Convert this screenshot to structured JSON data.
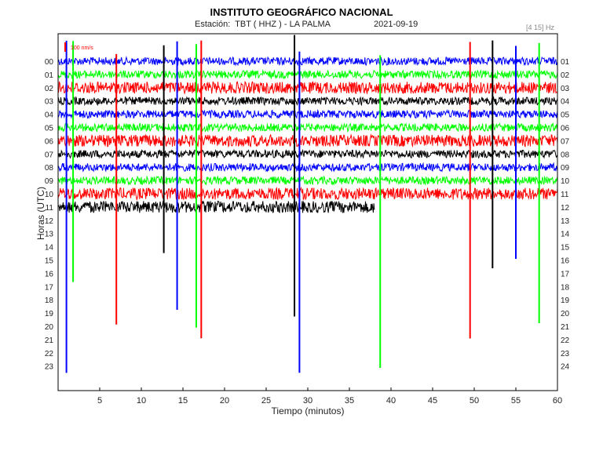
{
  "header": {
    "title": "INSTITUTO GEOGRÁFICO NACIONAL",
    "station": "Estación:  TBT ( HHZ ) - LA PALMA",
    "date": "2021-09-19",
    "band": "[4 15] Hz",
    "scale_label": "100 nm/s"
  },
  "chart_data": {
    "type": "line",
    "title": "INSTITUTO GEOGRÁFICO NACIONAL",
    "xlabel": "Tiempo (minutos)",
    "ylabel": "Horas (UTC)",
    "xlim": [
      0,
      60
    ],
    "x_ticks": [
      5,
      10,
      15,
      20,
      25,
      30,
      35,
      40,
      45,
      50,
      55,
      60
    ],
    "left_hour_labels": [
      "00",
      "01",
      "02",
      "03",
      "04",
      "05",
      "06",
      "07",
      "08",
      "09",
      "10",
      "11",
      "12",
      "13",
      "14",
      "15",
      "16",
      "17",
      "18",
      "19",
      "20",
      "21",
      "22",
      "23"
    ],
    "right_hour_labels": [
      "01",
      "02",
      "03",
      "04",
      "05",
      "06",
      "07",
      "08",
      "09",
      "10",
      "11",
      "12",
      "13",
      "14",
      "15",
      "16",
      "17",
      "18",
      "19",
      "20",
      "21",
      "22",
      "23",
      "24"
    ],
    "trace_color_cycle": [
      "#0000ff",
      "#00ff00",
      "#ff0000",
      "#000000"
    ],
    "recorded_hours": 11,
    "partial_last_hour_minutes": 38,
    "event_minutes": [
      1.0,
      1.8,
      7.0,
      12.7,
      14.3,
      16.6,
      17.2,
      28.4,
      29.0,
      38.7,
      49.5,
      52.2,
      55.0,
      57.8
    ],
    "grid": false,
    "legend": "none"
  }
}
